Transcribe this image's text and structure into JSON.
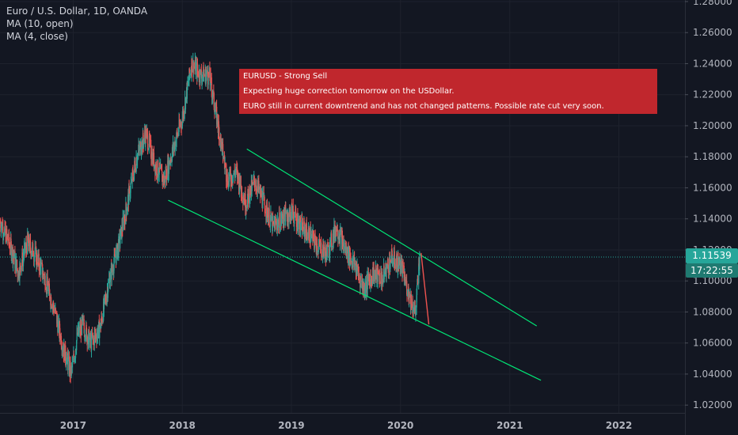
{
  "legend": {
    "symbol": "Euro / U.S. Dollar, 1D, OANDA",
    "ma1": "MA (10, open)",
    "ma2": "MA (4, close)"
  },
  "annotation": {
    "line1": "EURUSD - Strong Sell",
    "line2": "Expecting huge correction tomorrow on the USDollar.",
    "line3": "EURO still in current downtrend and has not changed patterns.  Possible rate cut very soon."
  },
  "price_badge": "1.11539",
  "time_badge": "17:22:55",
  "colors": {
    "background": "#131722",
    "up": "#26a69a",
    "down": "#ef5350",
    "trendline": "#00e676",
    "annotation": "#c0272d",
    "axis_text": "#b2b5be"
  },
  "chart_data": {
    "type": "candlestick",
    "title": "Euro / U.S. Dollar, 1D, OANDA",
    "x_ticks": [
      "2017",
      "2018",
      "2019",
      "2020",
      "2021",
      "2022"
    ],
    "y_ticks": [
      "1.28000",
      "1.26000",
      "1.24000",
      "1.22000",
      "1.20000",
      "1.18000",
      "1.16000",
      "1.14000",
      "1.12000",
      "1.10000",
      "1.08000",
      "1.06000",
      "1.04000",
      "1.02000"
    ],
    "ylim": [
      1.015,
      1.281
    ],
    "xlim": [
      "2016-05-01",
      "2022-08-10"
    ],
    "grid": true,
    "current_price": 1.11539,
    "price_path": [
      [
        "2016-05-01",
        1.138
      ],
      [
        "2016-06-01",
        1.125
      ],
      [
        "2016-07-01",
        1.105
      ],
      [
        "2016-08-01",
        1.125
      ],
      [
        "2016-09-01",
        1.115
      ],
      [
        "2016-10-01",
        1.1
      ],
      [
        "2016-11-01",
        1.08
      ],
      [
        "2016-12-01",
        1.055
      ],
      [
        "2016-12-25",
        1.04
      ],
      [
        "2017-01-15",
        1.065
      ],
      [
        "2017-02-01",
        1.072
      ],
      [
        "2017-03-01",
        1.06
      ],
      [
        "2017-04-01",
        1.07
      ],
      [
        "2017-05-01",
        1.1
      ],
      [
        "2017-06-01",
        1.122
      ],
      [
        "2017-07-01",
        1.15
      ],
      [
        "2017-08-01",
        1.18
      ],
      [
        "2017-09-01",
        1.195
      ],
      [
        "2017-10-01",
        1.175
      ],
      [
        "2017-11-01",
        1.165
      ],
      [
        "2017-12-01",
        1.185
      ],
      [
        "2018-01-01",
        1.205
      ],
      [
        "2018-02-01",
        1.24
      ],
      [
        "2018-03-01",
        1.233
      ],
      [
        "2018-04-01",
        1.232
      ],
      [
        "2018-05-01",
        1.2
      ],
      [
        "2018-06-01",
        1.165
      ],
      [
        "2018-07-01",
        1.17
      ],
      [
        "2018-08-01",
        1.15
      ],
      [
        "2018-09-01",
        1.165
      ],
      [
        "2018-10-01",
        1.15
      ],
      [
        "2018-11-01",
        1.135
      ],
      [
        "2018-12-01",
        1.14
      ],
      [
        "2019-01-01",
        1.145
      ],
      [
        "2019-02-01",
        1.135
      ],
      [
        "2019-03-01",
        1.13
      ],
      [
        "2019-04-01",
        1.122
      ],
      [
        "2019-05-01",
        1.118
      ],
      [
        "2019-06-01",
        1.135
      ],
      [
        "2019-07-01",
        1.12
      ],
      [
        "2019-08-01",
        1.11
      ],
      [
        "2019-09-01",
        1.095
      ],
      [
        "2019-10-01",
        1.105
      ],
      [
        "2019-11-01",
        1.102
      ],
      [
        "2019-12-01",
        1.115
      ],
      [
        "2020-01-01",
        1.11
      ],
      [
        "2020-02-01",
        1.09
      ],
      [
        "2020-02-20",
        1.08
      ],
      [
        "2020-03-05",
        1.115
      ]
    ],
    "series": [
      {
        "name": "MA (10, open)",
        "color": "#ef5350"
      },
      {
        "name": "MA (4, close)",
        "color": "#26a69a"
      }
    ],
    "trendlines": [
      {
        "color": "#00e676",
        "start": [
          "2018-08-05",
          1.185
        ],
        "end": [
          "2021-04-01",
          1.071
        ]
      },
      {
        "color": "#00e676",
        "start": [
          "2017-11-15",
          1.152
        ],
        "end": [
          "2021-04-15",
          1.036
        ]
      }
    ],
    "projection": {
      "color": "#ef5350",
      "start": [
        "2020-03-10",
        1.118
      ],
      "end": [
        "2020-04-05",
        1.072
      ]
    }
  }
}
